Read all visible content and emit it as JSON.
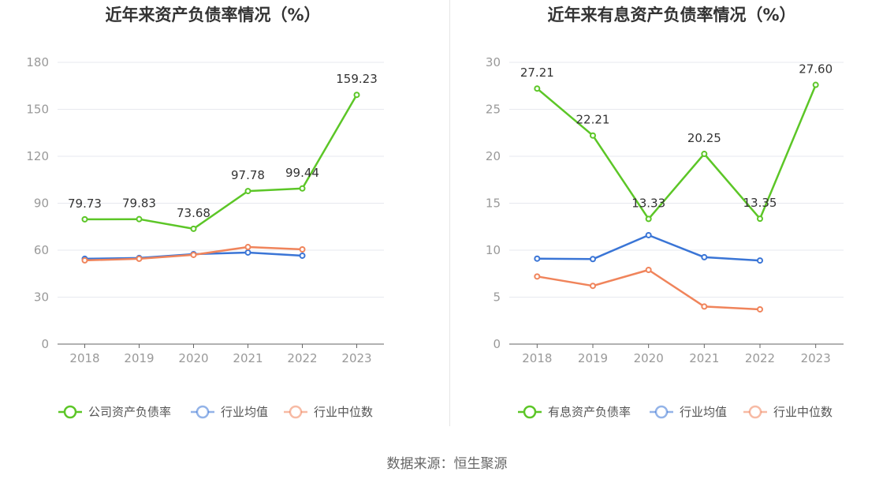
{
  "colors": {
    "company": "#5cc627",
    "avg": "#3a75d6",
    "median": "#f0845b",
    "grid": "#e7e9ef",
    "axis": "#666666"
  },
  "source_text": "数据来源：恒生聚源",
  "chart_data": [
    {
      "type": "line",
      "title": "近年来资产负债率情况（%）",
      "categories": [
        "2018",
        "2019",
        "2020",
        "2021",
        "2022",
        "2023"
      ],
      "ylim": [
        0,
        180
      ],
      "yticks": [
        0,
        30,
        60,
        90,
        120,
        150,
        180
      ],
      "series": [
        {
          "name": "公司资产负债率",
          "key": "company",
          "values": [
            79.73,
            79.83,
            73.68,
            97.78,
            99.44,
            159.23
          ],
          "labels": [
            "79.73",
            "79.83",
            "73.68",
            "97.78",
            "99.44",
            "159.23"
          ]
        },
        {
          "name": "行业均值",
          "key": "avg",
          "values": [
            54.5,
            55.0,
            57.5,
            58.5,
            56.5,
            null
          ]
        },
        {
          "name": "行业中位数",
          "key": "median",
          "values": [
            53.5,
            54.5,
            57.0,
            62.0,
            60.5,
            null
          ]
        }
      ]
    },
    {
      "type": "line",
      "title": "近年来有息资产负债率情况（%）",
      "categories": [
        "2018",
        "2019",
        "2020",
        "2021",
        "2022",
        "2023"
      ],
      "ylim": [
        0,
        30
      ],
      "yticks": [
        0,
        5,
        10,
        15,
        20,
        25,
        30
      ],
      "series": [
        {
          "name": "有息资产负债率",
          "key": "company",
          "values": [
            27.21,
            22.21,
            13.33,
            20.25,
            13.35,
            27.6
          ],
          "labels": [
            "27.21",
            "22.21",
            "13.33",
            "20.25",
            "13.35",
            "27.60"
          ]
        },
        {
          "name": "行业均值",
          "key": "avg",
          "values": [
            9.1,
            9.05,
            11.6,
            9.25,
            8.9,
            null
          ]
        },
        {
          "name": "行业中位数",
          "key": "median",
          "values": [
            7.2,
            6.2,
            7.9,
            4.0,
            3.7,
            null
          ]
        }
      ]
    }
  ]
}
